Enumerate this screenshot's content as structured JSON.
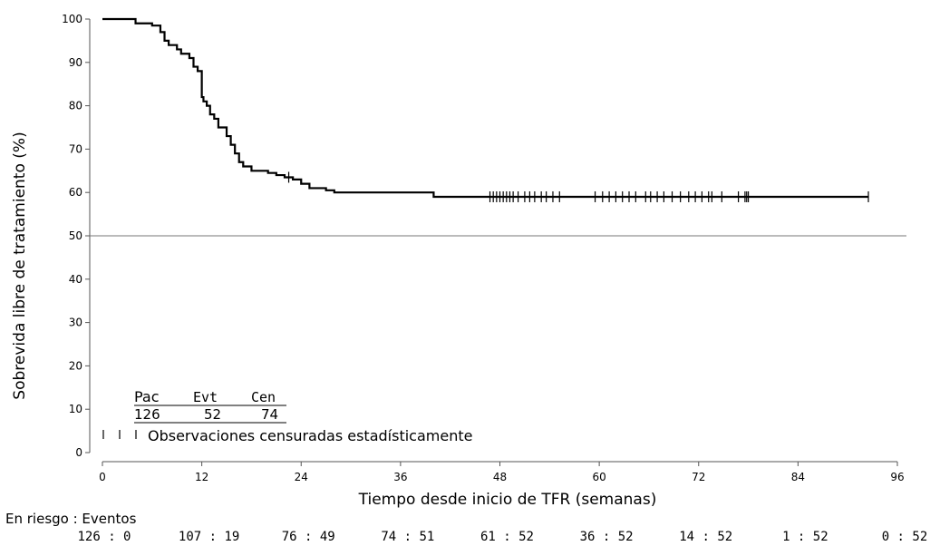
{
  "chart_data": {
    "type": "line",
    "subtype": "kaplan-meier",
    "title": "",
    "xlabel": "Tiempo desde inicio de TFR (semanas)",
    "ylabel": "Sobrevida libre de tratamiento (%)",
    "xlim": [
      0,
      96
    ],
    "ylim": [
      0,
      100
    ],
    "x_ticks": [
      0,
      12,
      24,
      36,
      48,
      60,
      72,
      84,
      96
    ],
    "y_ticks": [
      0,
      10,
      20,
      30,
      40,
      50,
      60,
      70,
      80,
      90,
      100
    ],
    "reference_line": {
      "y": 50
    },
    "grid": false,
    "series": [
      {
        "x": [
          0,
          1,
          2,
          3,
          4,
          5,
          6,
          7,
          7.5,
          8,
          8.5,
          9,
          9.5,
          10,
          10.5,
          11,
          11.5,
          12,
          12.2,
          12.6,
          13,
          13.5,
          14,
          14.5,
          15,
          15.5,
          16,
          16.5,
          17,
          17.5,
          18,
          19,
          20,
          21,
          22,
          23,
          24,
          25,
          26,
          27,
          28,
          30,
          32,
          34,
          36,
          38,
          40,
          44,
          48,
          52,
          56,
          60,
          64,
          68,
          72,
          76,
          80,
          84,
          88,
          92.5
        ],
        "y": [
          100,
          100,
          100,
          100,
          99,
          99,
          98.5,
          97,
          95,
          94,
          94,
          93,
          92,
          92,
          91,
          89,
          88,
          82,
          81,
          80,
          78,
          77,
          75,
          75,
          73,
          71,
          69,
          67,
          66,
          66,
          65,
          65,
          64.5,
          64,
          63.5,
          63,
          62,
          61,
          61,
          60.5,
          60,
          60,
          60,
          60,
          60,
          60,
          59,
          59,
          59,
          59,
          59,
          59,
          59,
          59,
          59,
          59,
          59,
          59,
          59,
          59
        ],
        "censored_x": [
          22.5,
          46.8,
          47.2,
          47.6,
          48.0,
          48.4,
          48.8,
          49.2,
          49.6,
          50.2,
          51.0,
          51.6,
          52.2,
          53.0,
          53.6,
          54.4,
          55.2,
          59.5,
          60.4,
          61.2,
          62.0,
          62.8,
          63.6,
          64.4,
          65.6,
          66.2,
          67.0,
          67.8,
          68.8,
          69.8,
          70.8,
          71.6,
          72.4,
          73.2,
          73.6,
          74.8,
          76.8,
          77.6,
          77.8,
          78.0,
          92.5
        ]
      }
    ]
  },
  "summary": {
    "headers": [
      "Pac",
      "Evt",
      "Cen"
    ],
    "values": [
      "126",
      "52",
      "74"
    ],
    "censored_legend": "Observaciones censuradas estadísticamente"
  },
  "risk_table": {
    "label": "En riesgo : Eventos",
    "entries": [
      "126 : 0",
      "107 : 19",
      "76 : 49",
      "74 : 51",
      "61 : 52",
      "36 : 52",
      "14 : 52",
      "1 : 52",
      "0 : 52"
    ]
  }
}
